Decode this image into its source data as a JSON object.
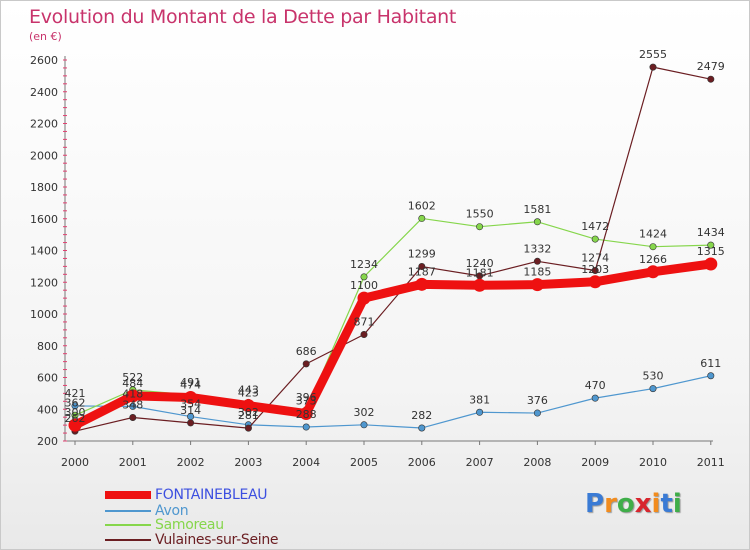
{
  "header": {
    "title": "Evolution du Montant de la Dette par Habitant",
    "unit": "(en €)"
  },
  "logo": {
    "text": "Proxiti",
    "colors": [
      "#3a7bd5",
      "#f28c1e",
      "#3fae49",
      "#d8262e",
      "#f28c1e",
      "#3a7bd5",
      "#3fae49"
    ]
  },
  "chart_data": {
    "type": "line",
    "title": "Evolution du Montant de la Dette par Habitant",
    "subtitle": "(en €)",
    "xlabel": "",
    "ylabel": "",
    "x": [
      "2000",
      "2001",
      "2002",
      "2003",
      "2004",
      "2005",
      "2006",
      "2007",
      "2008",
      "2009",
      "2010",
      "2011"
    ],
    "ylim": [
      200,
      2600
    ],
    "yticks": [
      200,
      400,
      600,
      800,
      1000,
      1200,
      1400,
      1600,
      1800,
      2000,
      2200,
      2400,
      2600
    ],
    "grid": false,
    "legend_position": "bottom-left",
    "series": [
      {
        "name": "FONTAINEBLEAU",
        "color": "#ee1111",
        "values": [
          300,
          484,
          474,
          423,
          373,
          1100,
          1187,
          1181,
          1185,
          1203,
          1266,
          1315
        ]
      },
      {
        "name": "Avon",
        "color": "#4f97cf",
        "values": [
          421,
          418,
          354,
          302,
          288,
          302,
          282,
          381,
          376,
          470,
          530,
          611
        ]
      },
      {
        "name": "Samoreau",
        "color": "#86d64c",
        "values": [
          362,
          522,
          491,
          443,
          396,
          1234,
          1602,
          1550,
          1581,
          1472,
          1424,
          1434
        ]
      },
      {
        "name": "Vulaines-sur-Seine",
        "color": "#6b1e22",
        "values": [
          262,
          348,
          314,
          281,
          686,
          871,
          1299,
          1240,
          1332,
          1274,
          2555,
          2479
        ]
      }
    ],
    "data_labels": [
      {
        "series": 0,
        "labels": [
          "300",
          "484",
          "474",
          "423",
          "373",
          "1100",
          "1187",
          "1181",
          "1185",
          "1203",
          "1266",
          "1315"
        ]
      },
      {
        "series": 1,
        "labels": [
          "421",
          "418",
          "354",
          "302",
          "288",
          "302",
          "282",
          "381",
          "376",
          "470",
          "530",
          "611"
        ]
      },
      {
        "series": 2,
        "labels": [
          "362",
          "522",
          "491",
          "443",
          "396",
          "1234",
          "1602",
          "1550",
          "1581",
          "1472",
          "1424",
          "1434"
        ]
      },
      {
        "series": 3,
        "labels": [
          "262",
          "348",
          "314",
          "281",
          "686",
          "871",
          "1299",
          "1240",
          "1332",
          "1274",
          "2555",
          "2479"
        ]
      }
    ]
  }
}
